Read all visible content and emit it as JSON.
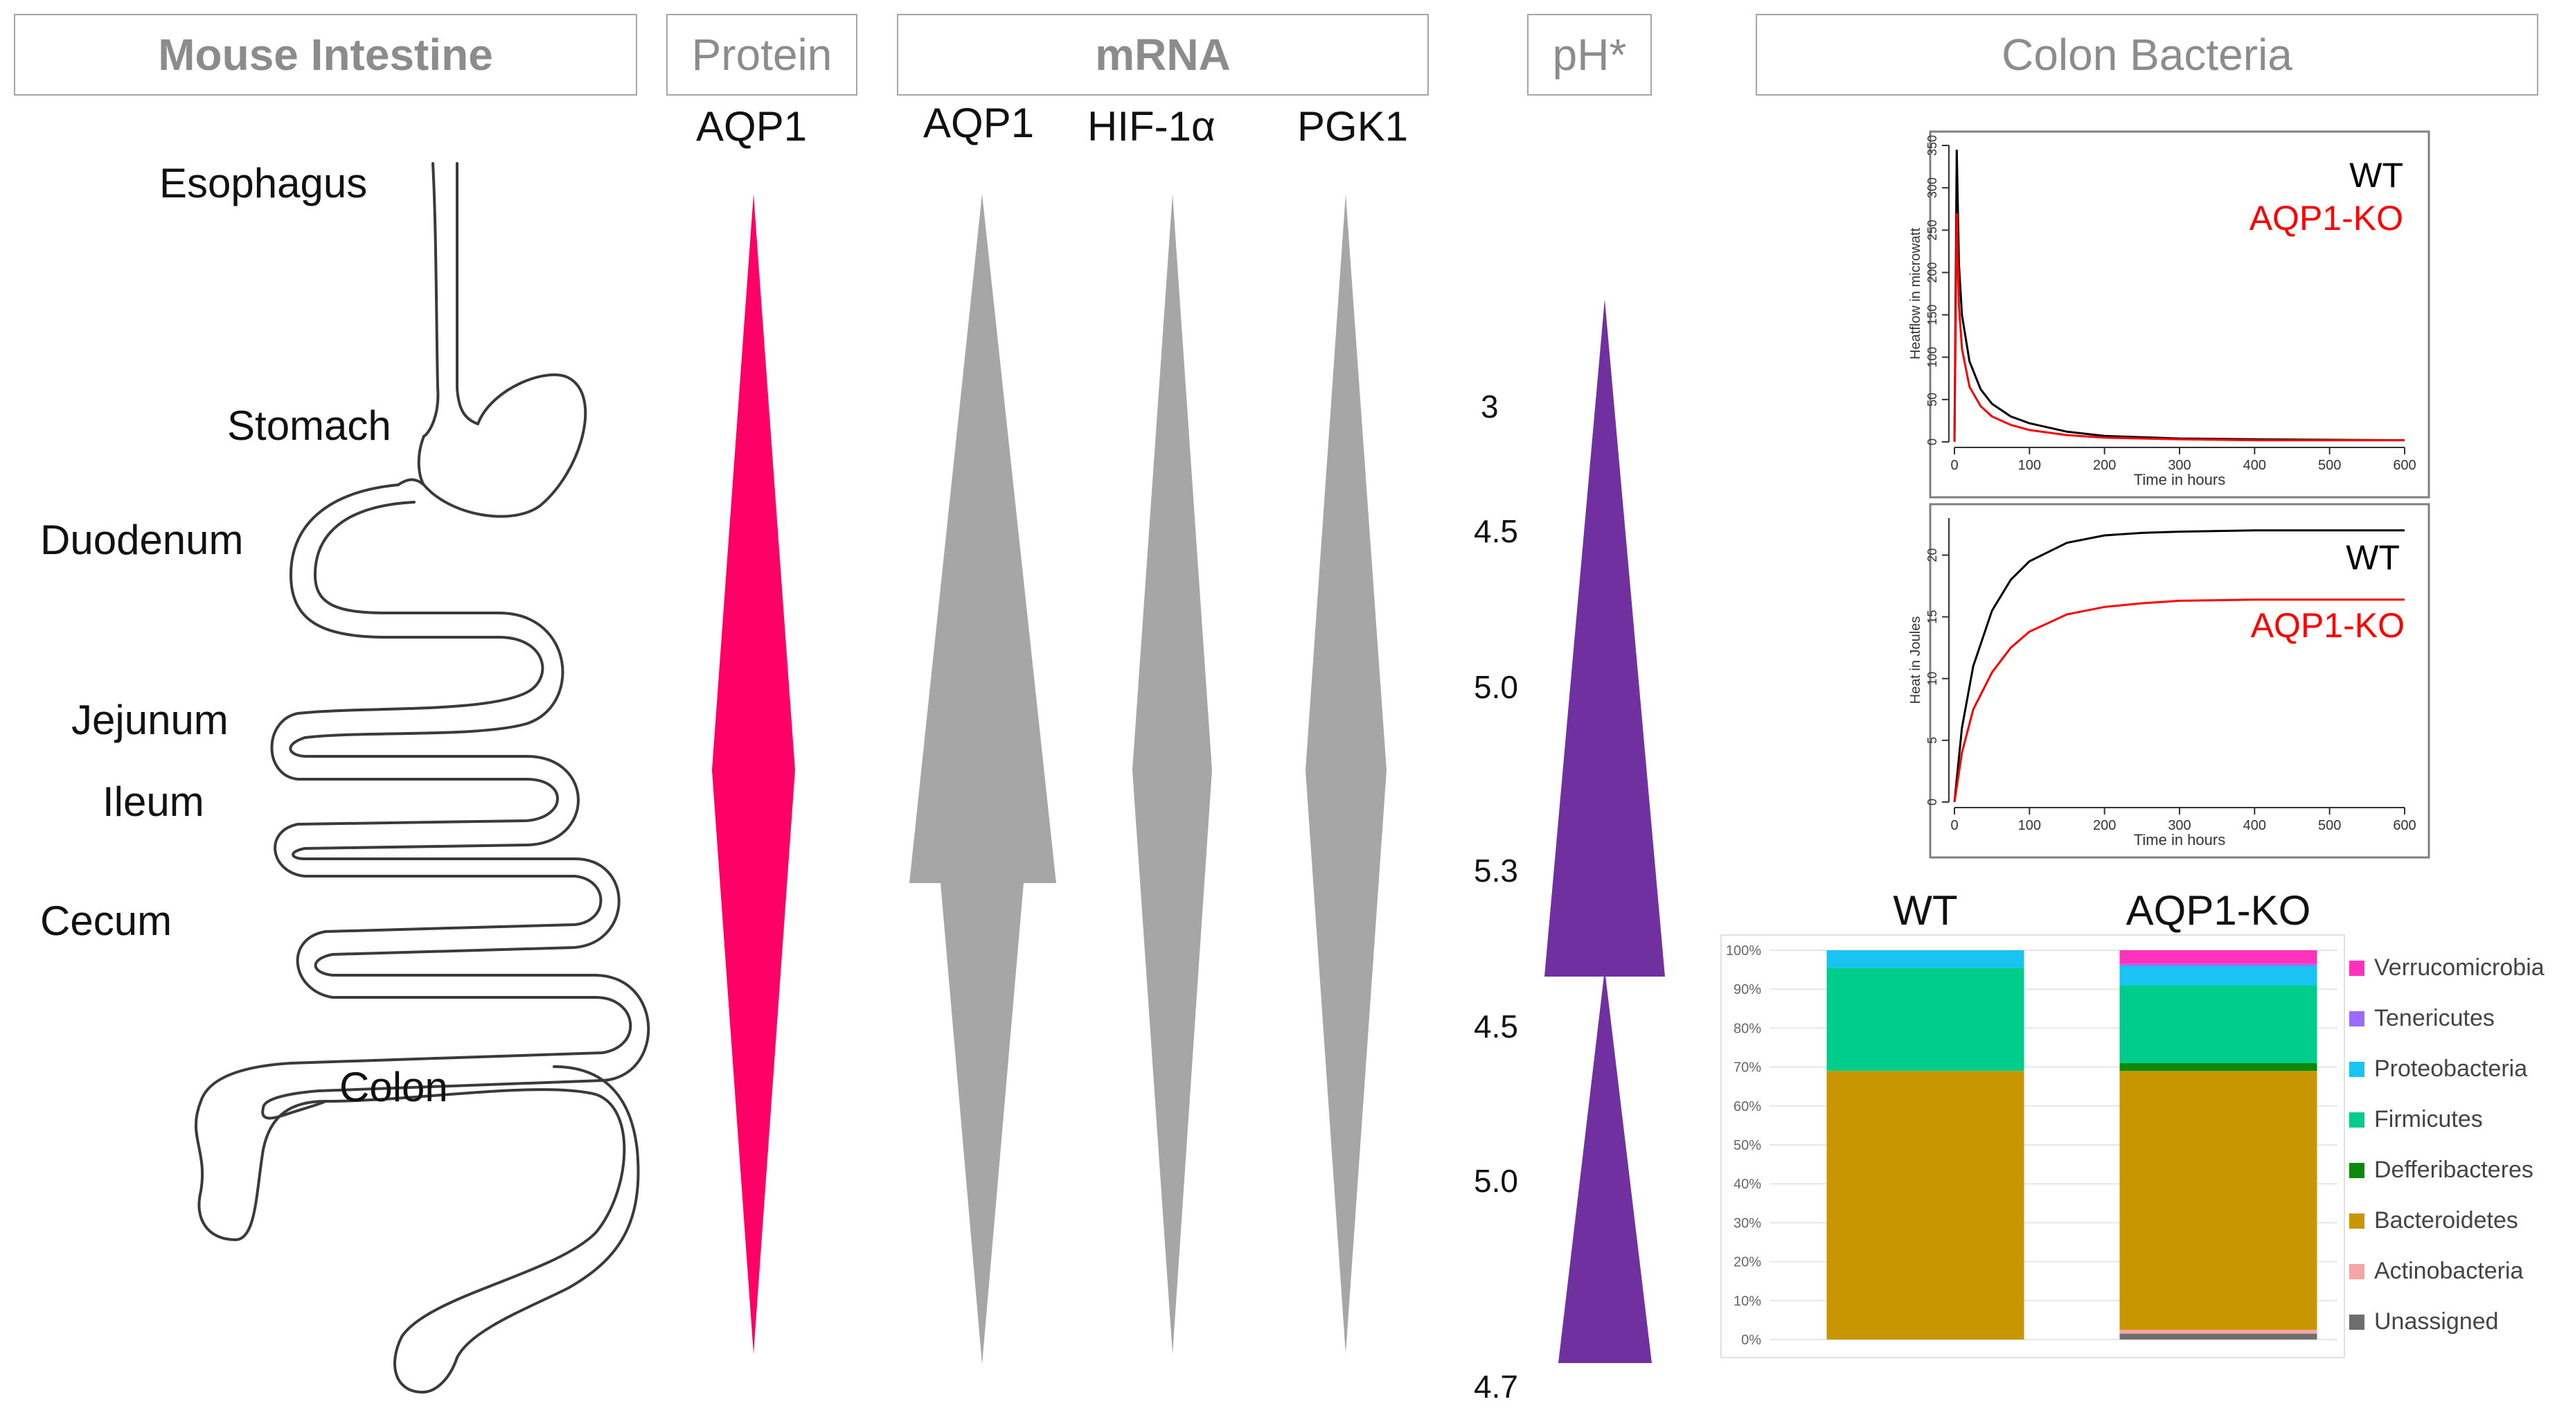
{
  "headers": {
    "mouse_intestine": "Mouse Intestine",
    "protein": "Protein",
    "mrna": "mRNA",
    "ph": "pH*",
    "colon_bacteria": "Colon Bacteria"
  },
  "intestine_labels": {
    "esophagus": "Esophagus",
    "stomach": "Stomach",
    "duodenum": "Duodenum",
    "jejunum": "Jejunum",
    "ileum": "Ileum",
    "cecum": "Cecum",
    "colon": "Colon"
  },
  "gene_labels": {
    "protein_aqp1": "AQP1",
    "mrna_aqp1": "AQP1",
    "mrna_hif": "HIF-1α",
    "mrna_pgk1": "PGK1"
  },
  "ph_values": [
    "3",
    "4.5",
    "5.0",
    "5.3",
    "4.5",
    "5.0",
    "4.7"
  ],
  "colors": {
    "protein_arrow": "#ff0066",
    "mrna_arrow": "#a6a6a6",
    "ph_arrow": "#7030a0",
    "wt_line": "#000000",
    "ko_line": "#ff0000",
    "header_border": "#a6a6a6",
    "header_text": "#8c8c8c"
  },
  "chart_data": [
    {
      "type": "line",
      "xlabel": "Time in hours",
      "ylabel": "Heatflow in microwatt",
      "xlim": [
        0,
        600
      ],
      "ylim": [
        0,
        350
      ],
      "xticks": [
        "0",
        "100",
        "200",
        "300",
        "400",
        "500",
        "600"
      ],
      "yticks": [
        "0",
        "50",
        "100",
        "150",
        "200",
        "250",
        "300",
        "350"
      ],
      "legend_position": "top-right",
      "series": [
        {
          "name": "WT",
          "color": "#000000",
          "x": [
            0,
            3,
            6,
            10,
            20,
            35,
            50,
            75,
            100,
            150,
            200,
            300,
            400,
            600
          ],
          "y": [
            0,
            345,
            210,
            150,
            95,
            62,
            45,
            30,
            22,
            12,
            7,
            4,
            3,
            2
          ]
        },
        {
          "name": "AQP1-KO",
          "color": "#ff0000",
          "x": [
            0,
            3,
            6,
            10,
            20,
            35,
            50,
            75,
            100,
            150,
            200,
            300,
            400,
            600
          ],
          "y": [
            0,
            270,
            160,
            110,
            65,
            42,
            30,
            20,
            14,
            8,
            5,
            3,
            2,
            2
          ]
        }
      ]
    },
    {
      "type": "line",
      "xlabel": "Time in hours",
      "ylabel": "Heat in Joules",
      "xlim": [
        0,
        600
      ],
      "ylim": [
        0,
        23
      ],
      "xticks": [
        "0",
        "100",
        "200",
        "300",
        "400",
        "500",
        "600"
      ],
      "yticks": [
        "0",
        "5",
        "10",
        "15",
        "20"
      ],
      "legend_position": "right",
      "series": [
        {
          "name": "WT",
          "color": "#000000",
          "x": [
            0,
            10,
            25,
            50,
            75,
            100,
            150,
            200,
            250,
            300,
            400,
            500,
            600
          ],
          "y": [
            0,
            6,
            11,
            15.5,
            18,
            19.5,
            21,
            21.6,
            21.8,
            21.9,
            22,
            22,
            22
          ]
        },
        {
          "name": "AQP1-KO",
          "color": "#ff0000",
          "x": [
            0,
            10,
            25,
            50,
            75,
            100,
            150,
            200,
            250,
            300,
            400,
            500,
            600
          ],
          "y": [
            0,
            4,
            7.5,
            10.5,
            12.5,
            13.8,
            15.2,
            15.8,
            16.1,
            16.3,
            16.4,
            16.4,
            16.4
          ]
        }
      ]
    },
    {
      "type": "bar",
      "stacked": true,
      "categories": [
        "WT",
        "AQP1-KO"
      ],
      "ylim": [
        0,
        100
      ],
      "yticks": [
        "0%",
        "10%",
        "20%",
        "30%",
        "40%",
        "50%",
        "60%",
        "70%",
        "80%",
        "90%",
        "100%"
      ],
      "legend_position": "right",
      "series": [
        {
          "name": "Unassigned",
          "color": "#6e6e6e",
          "values": [
            0,
            1.5
          ]
        },
        {
          "name": "Actinobacteria",
          "color": "#f4a6a6",
          "values": [
            0,
            1
          ]
        },
        {
          "name": "Bacteroidetes",
          "color": "#c89600",
          "values": [
            69,
            66.5
          ]
        },
        {
          "name": "Defferibacteres",
          "color": "#0b8a0b",
          "values": [
            0,
            2
          ]
        },
        {
          "name": "Firmicutes",
          "color": "#00cc8c",
          "values": [
            26.5,
            20
          ]
        },
        {
          "name": "Proteobacteria",
          "color": "#19c3f2",
          "values": [
            4.5,
            5
          ]
        },
        {
          "name": "Tenericutes",
          "color": "#9b6bff",
          "values": [
            0,
            0.5
          ]
        },
        {
          "name": "Verrucomicrobia",
          "color": "#ff33bb",
          "values": [
            0,
            3.5
          ]
        }
      ]
    }
  ]
}
